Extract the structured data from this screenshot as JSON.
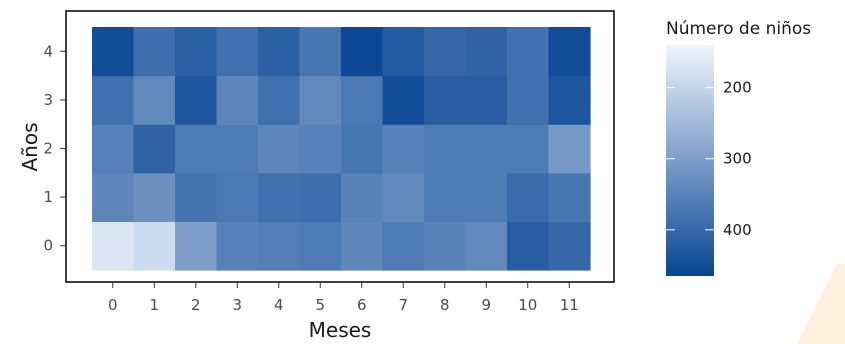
{
  "chart_data": {
    "type": "heatmap",
    "xlabel": "Meses",
    "ylabel": "Años",
    "x_categories": [
      "0",
      "1",
      "2",
      "3",
      "4",
      "5",
      "6",
      "7",
      "8",
      "9",
      "10",
      "11"
    ],
    "y_categories": [
      "0",
      "1",
      "2",
      "3",
      "4"
    ],
    "values": [
      [
        170,
        190,
        300,
        355,
        360,
        365,
        345,
        365,
        350,
        340,
        420,
        400
      ],
      [
        345,
        325,
        380,
        370,
        385,
        390,
        350,
        340,
        365,
        365,
        395,
        375
      ],
      [
        355,
        410,
        365,
        365,
        345,
        355,
        375,
        355,
        365,
        365,
        365,
        310
      ],
      [
        385,
        340,
        435,
        345,
        385,
        340,
        370,
        450,
        420,
        420,
        385,
        435
      ],
      [
        450,
        390,
        415,
        385,
        415,
        375,
        460,
        425,
        400,
        410,
        385,
        450
      ]
    ],
    "legend": {
      "title": "Número de niños",
      "ticks": [
        200,
        300,
        400
      ],
      "min": 140,
      "max": 465,
      "color_low": "#f0f5fd",
      "color_high": "#084594"
    }
  },
  "watermark_color": "#fff1dc"
}
